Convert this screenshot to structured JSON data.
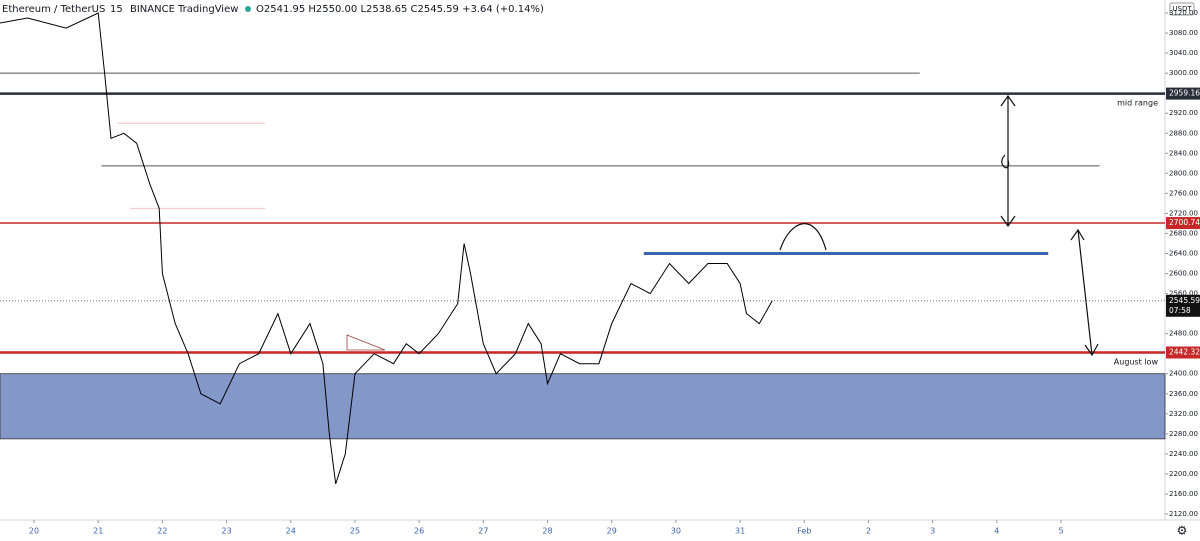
{
  "chart_data": {
    "type": "line",
    "header": {
      "symbol": "Ethereum / TetherUS",
      "interval": "15",
      "exchange": "BINANCE",
      "brand": "TradingView",
      "quote": "O2541.95 H2550.00 L2538.65 C2545.59 +3.64 (+0.14%)"
    },
    "currency": "USDT",
    "x": [
      19.47,
      19.9,
      20.5,
      21,
      21.1,
      21.2,
      21.4,
      21.6,
      21.8,
      21.95,
      22,
      22.2,
      22.4,
      22.6,
      22.9,
      23.2,
      23.5,
      23.8,
      24,
      24.3,
      24.5,
      24.6,
      24.7,
      24.85,
      25,
      25.3,
      25.6,
      25.8,
      26,
      26.3,
      26.6,
      26.7,
      26.8,
      27,
      27.2,
      27.5,
      27.7,
      27.9,
      28,
      28.2,
      28.5,
      28.8,
      29,
      29.3,
      29.6,
      29.9,
      30.2,
      30.5,
      30.8,
      31,
      31.1,
      31.3,
      31.5
    ],
    "values": [
      3100,
      3110,
      3090,
      3120,
      3000,
      2870,
      2880,
      2860,
      2780,
      2730,
      2600,
      2500,
      2440,
      2360,
      2340,
      2420,
      2440,
      2520,
      2440,
      2500,
      2420,
      2280,
      2180,
      2240,
      2400,
      2440,
      2420,
      2460,
      2440,
      2480,
      2540,
      2660,
      2600,
      2460,
      2400,
      2440,
      2500,
      2460,
      2380,
      2440,
      2420,
      2420,
      2500,
      2580,
      2560,
      2620,
      2580,
      2620,
      2620,
      2580,
      2520,
      2500,
      2545.59
    ],
    "color": "#000000",
    "xlim": [
      19.47,
      37.62
    ],
    "ylim": [
      2108,
      3146
    ],
    "xticks": [
      20,
      21,
      22,
      23,
      24,
      25,
      26,
      27,
      28,
      29,
      30,
      31,
      {
        "value": 32,
        "label": "Feb"
      },
      {
        "value": 33,
        "label": "2"
      },
      {
        "value": 34,
        "label": "3"
      },
      {
        "value": 35,
        "label": "4"
      },
      {
        "value": 36,
        "label": "5"
      }
    ],
    "yticks": [
      {
        "value": 3120,
        "label": "3120.00"
      },
      {
        "value": 3080,
        "label": "3080.00"
      },
      {
        "value": 3040,
        "label": "3040.00"
      },
      {
        "value": 3000,
        "label": "3000.00"
      },
      {
        "value": 2920,
        "label": "2920.00"
      },
      {
        "value": 2880,
        "label": "2880.00"
      },
      {
        "value": 2840,
        "label": "2840.00"
      },
      {
        "value": 2800,
        "label": "2800.00"
      },
      {
        "value": 2760,
        "label": "2760.00"
      },
      {
        "value": 2720,
        "label": "2720.00"
      },
      {
        "value": 2680,
        "label": "2680.00"
      },
      {
        "value": 2640,
        "label": "2640.00"
      },
      {
        "value": 2600,
        "label": "2600.00"
      },
      {
        "value": 2560,
        "label": "2560.00"
      },
      {
        "value": 2480,
        "label": "2480.00"
      },
      {
        "value": 2400,
        "label": "2400.00"
      },
      {
        "value": 2360,
        "label": "2360.00"
      },
      {
        "value": 2320,
        "label": "2320.00"
      },
      {
        "value": 2280,
        "label": "2280.00"
      },
      {
        "value": 2240,
        "label": "2240.00"
      },
      {
        "value": 2200,
        "label": "2200.00"
      },
      {
        "value": 2160,
        "label": "2160.00"
      },
      {
        "value": 2120,
        "label": "2120.00"
      }
    ],
    "levels": [
      {
        "value": 3000,
        "x": [
          19.47,
          33.8
        ],
        "color": "#555555",
        "width": 1
      },
      {
        "value": 2959.16,
        "x": [
          19.47,
          37.62
        ],
        "color": "#2a2e39",
        "width": 2.5
      },
      {
        "value": 2900,
        "x": [
          21.3,
          23.6
        ],
        "color": "#f2c4c4",
        "width": 1
      },
      {
        "value": 2815,
        "x": [
          21.05,
          36.6
        ],
        "color": "#555555",
        "width": 1
      },
      {
        "value": 2730,
        "x": [
          21.5,
          23.6
        ],
        "color": "#f2c4c4",
        "width": 1
      },
      {
        "value": 2700.74,
        "x": [
          19.47,
          37.62
        ],
        "color": "#c62828",
        "width": 1.5
      },
      {
        "value": 2640,
        "x": [
          29.5,
          35.8
        ],
        "color": "#3a63b0",
        "width": 3
      },
      {
        "value": 2442.32,
        "x": [
          19.47,
          37.62
        ],
        "color": "#c62828",
        "width": 2.5
      }
    ],
    "zones": [
      {
        "from": 2400,
        "to": 2270,
        "color": "#8497c9"
      }
    ],
    "price_labels": [
      {
        "value": 2959.16,
        "color": "#2a2e39"
      },
      {
        "value": 2700.74,
        "color": "#c62828"
      },
      {
        "value": 2545.59,
        "color": "#111111"
      },
      {
        "value": 2442.32,
        "color": "#c62828"
      }
    ],
    "countdown": "07:58",
    "annotations": [
      {
        "text": "mid range",
        "y": 2940
      },
      {
        "text": "August low",
        "y": 2423
      }
    ]
  }
}
